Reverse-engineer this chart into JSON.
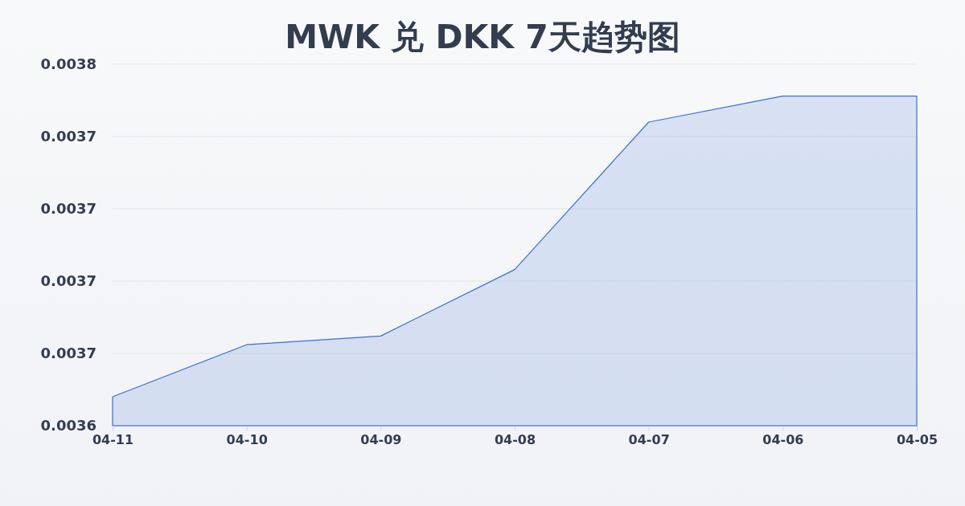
{
  "chart_data": {
    "type": "area",
    "title": "MWK 兑 DKK 7天趋势图",
    "categories": [
      "04-11",
      "04-10",
      "04-09",
      "04-08",
      "04-07",
      "04-06",
      "04-05"
    ],
    "values": [
      0.003645,
      0.003663,
      0.003666,
      0.003689,
      0.00374,
      0.003749,
      0.003749
    ],
    "color": "#3b6fd4",
    "ylim": [
      0.003635,
      0.00376
    ],
    "yticks": [
      {
        "value": 0.003635,
        "label": "0.0036"
      },
      {
        "value": 0.00366,
        "label": "0.0037"
      },
      {
        "value": 0.003685,
        "label": "0.0037"
      },
      {
        "value": 0.00371,
        "label": "0.0037"
      },
      {
        "value": 0.003735,
        "label": "0.0037"
      },
      {
        "value": 0.00376,
        "label": "0.0038"
      }
    ],
    "grid": "y"
  }
}
